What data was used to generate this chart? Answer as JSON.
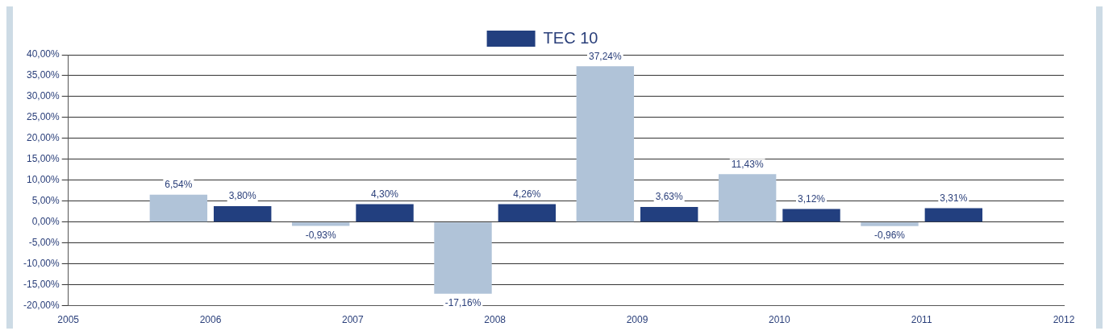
{
  "chart_data": {
    "type": "bar",
    "x": [
      2006,
      2007,
      2008,
      2009,
      2010,
      2011
    ],
    "series": [
      {
        "color": "#b0c3d8",
        "values": [
          6.54,
          -0.93,
          -17.16,
          37.24,
          11.43,
          -0.96
        ],
        "value_labels": [
          "6,54%",
          "-0,93%",
          "-17,16%",
          "37,24%",
          "11,43%",
          "-0,96%"
        ]
      },
      {
        "name": "TEC 10",
        "color": "#223f7f",
        "values": [
          3.8,
          4.3,
          4.26,
          3.63,
          3.12,
          3.31
        ],
        "value_labels": [
          "3,80%",
          "4,30%",
          "4,26%",
          "3,63%",
          "3,12%",
          "3,31%"
        ]
      }
    ],
    "xlim": [
      2005,
      2012
    ],
    "xticks": [
      2005,
      2006,
      2007,
      2008,
      2009,
      2010,
      2011,
      2012
    ],
    "ylim": [
      -20,
      40
    ],
    "yticks": [
      {
        "value": -20,
        "label": "-20,00%"
      },
      {
        "value": -15,
        "label": "-15,00%"
      },
      {
        "value": -10,
        "label": "-10,00%"
      },
      {
        "value": -5,
        "label": "-5,00%"
      },
      {
        "value": 0,
        "label": "0,00%"
      },
      {
        "value": 5,
        "label": "5,00%"
      },
      {
        "value": 10,
        "label": "10,00%"
      },
      {
        "value": 15,
        "label": "15,00%"
      },
      {
        "value": 20,
        "label": "20,00%"
      },
      {
        "value": 25,
        "label": "25,00%"
      },
      {
        "value": 30,
        "label": "30,00%"
      },
      {
        "value": 35,
        "label": "35,00%"
      },
      {
        "value": 40,
        "label": "40,00%"
      }
    ],
    "grid": "y",
    "legend": "top"
  }
}
